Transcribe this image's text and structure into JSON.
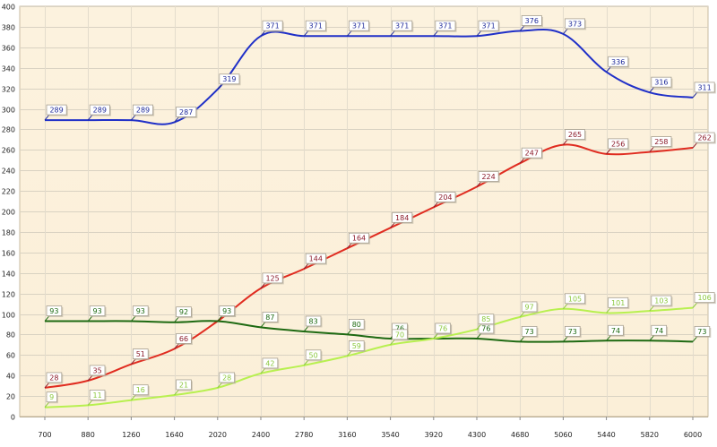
{
  "chart_data": {
    "type": "line",
    "title": "",
    "xlabel": "",
    "ylabel": "",
    "x": [
      700,
      880,
      1260,
      1640,
      2020,
      2400,
      2780,
      3160,
      3540,
      3920,
      4300,
      4680,
      5060,
      5440,
      5820,
      6000
    ],
    "x_tick_labels": [
      "700",
      "880",
      "1260",
      "1640",
      "2020",
      "2400",
      "2780",
      "3160",
      "3540",
      "3920",
      "4300",
      "4680",
      "5060",
      "5440",
      "5820",
      "6000"
    ],
    "ylim": [
      0,
      400
    ],
    "y_ticks": [
      0,
      20,
      40,
      60,
      80,
      100,
      120,
      140,
      160,
      180,
      200,
      220,
      240,
      260,
      280,
      300,
      320,
      340,
      360,
      380,
      400
    ],
    "grid": true,
    "legend": "none",
    "background": "#FBEFD8",
    "series": [
      {
        "color": "#2030C8",
        "label_color": "#1E2A9A",
        "values": [
          289,
          289,
          289,
          287,
          319,
          371,
          371,
          371,
          371,
          371,
          371,
          376,
          373,
          336,
          316,
          311
        ]
      },
      {
        "color": "#E02C20",
        "label_color": "#8B1A2A",
        "values": [
          28,
          35,
          51,
          66,
          93,
          125,
          144,
          164,
          184,
          204,
          224,
          247,
          265,
          256,
          258,
          262
        ]
      },
      {
        "color": "#1E6A12",
        "label_color": "#1E6A12",
        "values": [
          93,
          93,
          93,
          92,
          93,
          87,
          83,
          80,
          76,
          76,
          76,
          73,
          73,
          74,
          74,
          73
        ]
      },
      {
        "color": "#B8F050",
        "label_color": "#8CC840",
        "values": [
          9,
          11,
          16,
          21,
          28,
          42,
          50,
          59,
          70,
          76,
          85,
          97,
          105,
          101,
          103,
          106
        ]
      }
    ]
  }
}
